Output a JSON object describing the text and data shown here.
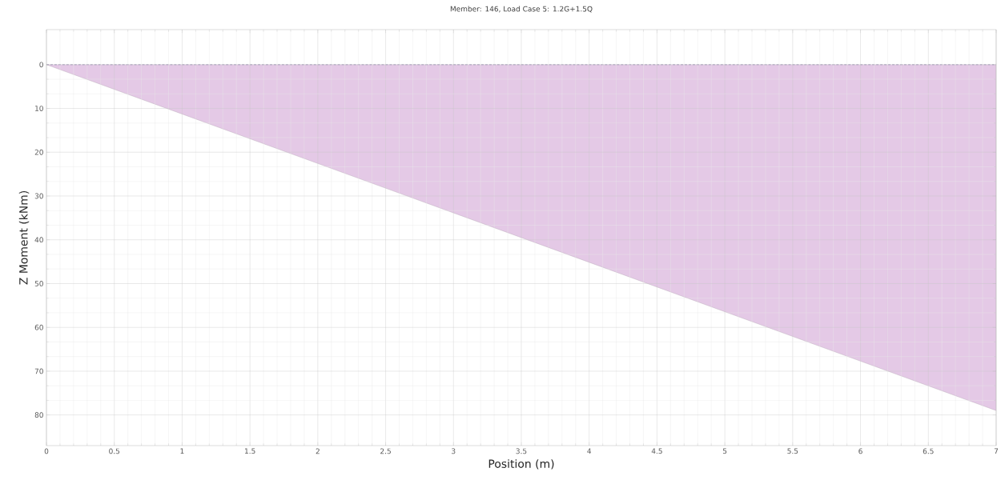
{
  "chart_data": {
    "type": "area",
    "title": "Member: 146, Load Case 5: 1.2G+1.5Q",
    "xlabel": "Position (m)",
    "ylabel": "Z Moment (kNm)",
    "x": [
      0,
      7
    ],
    "series": [
      {
        "color": "#e4c9e6",
        "values": [
          0,
          79
        ]
      }
    ],
    "xlim": [
      0,
      7
    ],
    "ylim": [
      87,
      -8
    ],
    "xticks": [
      0,
      0.5,
      1,
      1.5,
      2,
      2.5,
      3,
      3.5,
      4,
      4.5,
      5,
      5.5,
      6,
      6.5,
      7
    ],
    "yticks": [
      0,
      10,
      20,
      30,
      40,
      50,
      60,
      70,
      80
    ],
    "grid": true,
    "ref_lines": [
      {
        "axis": "y",
        "value": 0,
        "color": "#6a6a90",
        "line_style": "dashed"
      }
    ]
  }
}
